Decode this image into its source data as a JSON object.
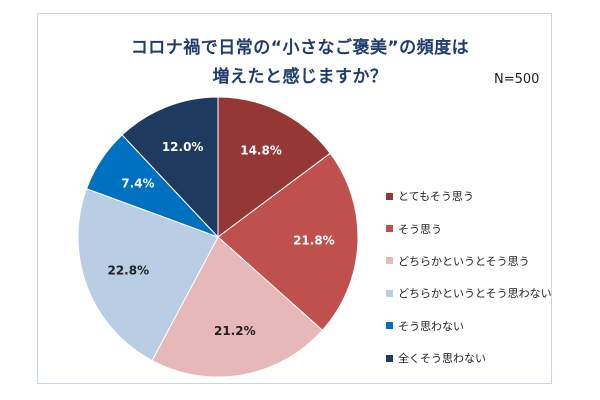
{
  "chart_data": {
    "type": "pie",
    "title": [
      "コロナ禍で日常の“小さなご褒美”の頻度は",
      "増えたと感じますか？"
    ],
    "sample_size_label": "N=500",
    "legend_position": "right",
    "slices": [
      {
        "label": "とてもそう思う",
        "value": 14.8,
        "value_label": "14.8%",
        "color": "#953735",
        "label_color": "#ffffff"
      },
      {
        "label": "そう思う",
        "value": 21.8,
        "value_label": "21.8%",
        "color": "#c0504d",
        "label_color": "#ffffff"
      },
      {
        "label": "どちらかというとそう思う",
        "value": 21.2,
        "value_label": "21.2%",
        "color": "#e6b9b8",
        "label_color": "#222222"
      },
      {
        "label": "どちらかというとそう思わない",
        "value": 22.8,
        "value_label": "22.8%",
        "color": "#b9cde5",
        "label_color": "#222222"
      },
      {
        "label": "そう思わない",
        "value": 7.4,
        "value_label": "7.4%",
        "color": "#0070c0",
        "label_color": "#ffffff"
      },
      {
        "label": "全くそう思わない",
        "value": 12.0,
        "value_label": "12.0%",
        "color": "#1f3a5f",
        "label_color": "#ffffff"
      }
    ]
  }
}
